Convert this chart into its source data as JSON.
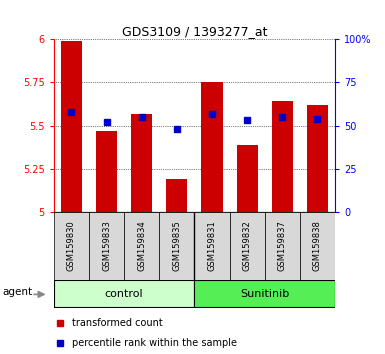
{
  "title": "GDS3109 / 1393277_at",
  "samples": [
    "GSM159830",
    "GSM159833",
    "GSM159834",
    "GSM159835",
    "GSM159831",
    "GSM159832",
    "GSM159837",
    "GSM159838"
  ],
  "red_values": [
    5.99,
    5.47,
    5.57,
    5.19,
    5.75,
    5.39,
    5.64,
    5.62
  ],
  "blue_values": [
    5.58,
    5.52,
    5.55,
    5.48,
    5.57,
    5.53,
    5.55,
    5.54
  ],
  "groups": [
    "control",
    "control",
    "control",
    "control",
    "Sunitinib",
    "Sunitinib",
    "Sunitinib",
    "Sunitinib"
  ],
  "ylim_left": [
    5.0,
    6.0
  ],
  "yticks_left": [
    5.0,
    5.25,
    5.5,
    5.75,
    6.0
  ],
  "ytick_labels_left": [
    "5",
    "5.25",
    "5.5",
    "5.75",
    "6"
  ],
  "yticks_right": [
    0,
    25,
    50,
    75,
    100
  ],
  "ytick_labels_right": [
    "0",
    "25",
    "50",
    "75",
    "100%"
  ],
  "bar_color": "#cc0000",
  "dot_color": "#0000cc",
  "control_color": "#ccffcc",
  "sunitinib_color": "#55ee55",
  "sample_box_color": "#d8d8d8",
  "label_red": "transformed count",
  "label_blue": "percentile rank within the sample"
}
